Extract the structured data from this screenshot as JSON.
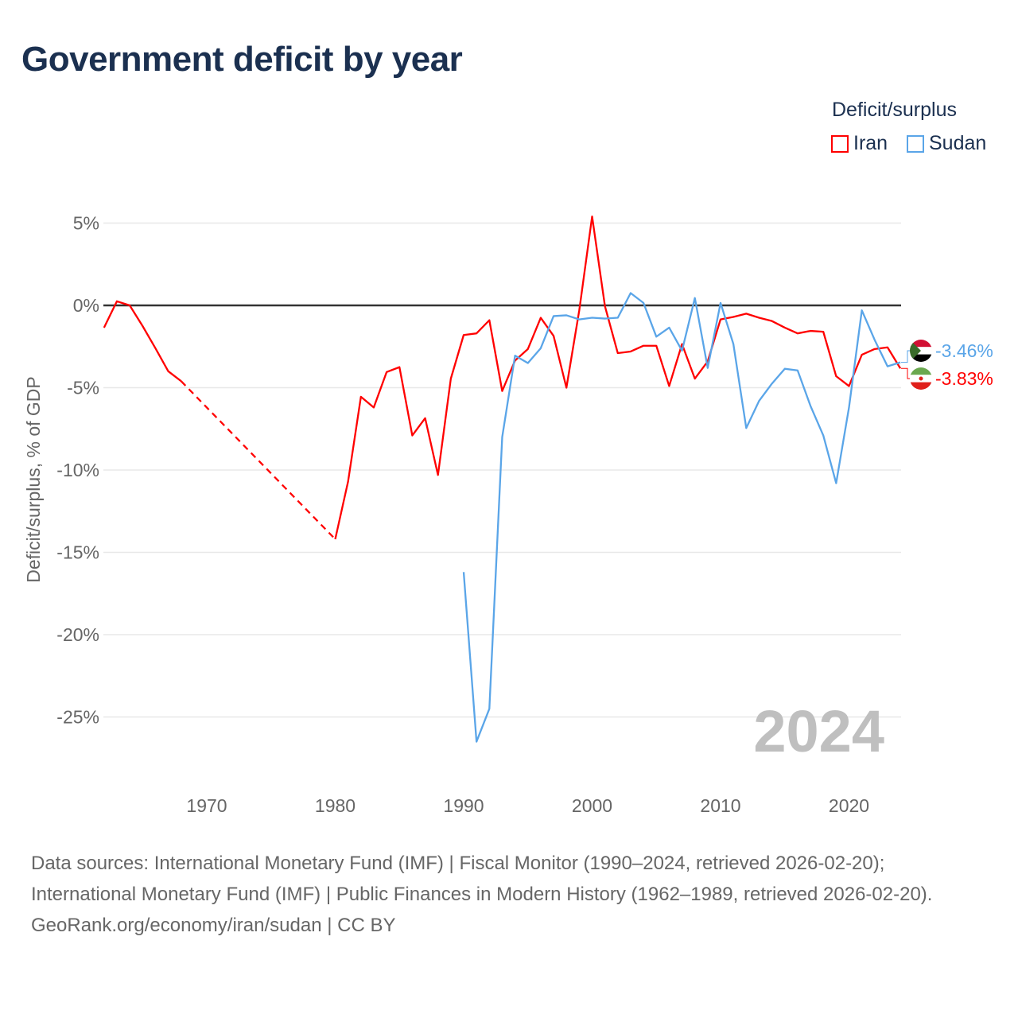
{
  "title": "Government deficit by year",
  "legend": {
    "title": "Deficit/surplus",
    "items": [
      {
        "name": "Iran",
        "color": "#ff0000"
      },
      {
        "name": "Sudan",
        "color": "#5aa5e8"
      }
    ]
  },
  "footer": {
    "sources": "Data sources: International Monetary Fund (IMF) | Fiscal Monitor (1990–2024, retrieved 2026-02-20); International Monetary Fund (IMF) | Public Finances in Modern History (1962–1989, retrieved 2026-02-20).",
    "attribution": "GeoRank.org/economy/iran/sudan | CC BY"
  },
  "chart_data": {
    "type": "line",
    "title": "Government deficit by year",
    "ylabel": "Deficit/surplus, % of GDP",
    "xlabel": "",
    "xlim": [
      1962,
      2024
    ],
    "ylim": [
      -28,
      6
    ],
    "yticks": [
      5,
      0,
      -5,
      -10,
      -15,
      -20,
      -25
    ],
    "ytick_labels": [
      "5%",
      "0%",
      "-5%",
      "-10%",
      "-15%",
      "-20%",
      "-25%"
    ],
    "xticks": [
      1970,
      1980,
      1990,
      2000,
      2010,
      2020
    ],
    "xtick_labels": [
      "1970",
      "1980",
      "1990",
      "2000",
      "2010",
      "2020"
    ],
    "grid": true,
    "legend_position": "top-right",
    "year_watermark": "2024",
    "series": [
      {
        "name": "Iran",
        "color": "#ff0000",
        "end_label": "-3.83%",
        "points": [
          [
            1962,
            -1.35
          ],
          [
            1963,
            0.25
          ],
          [
            1964,
            0
          ],
          [
            1965,
            -1.25
          ],
          [
            1966,
            -2.6
          ],
          [
            1967,
            -4.0
          ],
          [
            1968,
            -4.6
          ],
          [
            1980,
            -14.2
          ],
          [
            1981,
            -10.7
          ],
          [
            1982,
            -5.55
          ],
          [
            1983,
            -6.2
          ],
          [
            1984,
            -4.05
          ],
          [
            1985,
            -3.75
          ],
          [
            1986,
            -7.9
          ],
          [
            1987,
            -6.85
          ],
          [
            1988,
            -10.3
          ],
          [
            1989,
            -4.45
          ],
          [
            1990,
            -1.8
          ],
          [
            1991,
            -1.7
          ],
          [
            1992,
            -0.9
          ],
          [
            1993,
            -5.2
          ],
          [
            1994,
            -3.35
          ],
          [
            1995,
            -2.65
          ],
          [
            1996,
            -0.75
          ],
          [
            1997,
            -1.85
          ],
          [
            1998,
            -5.0
          ],
          [
            1999,
            -0.3
          ],
          [
            2000,
            5.4
          ],
          [
            2001,
            -0.05
          ],
          [
            2002,
            -2.9
          ],
          [
            2003,
            -2.8
          ],
          [
            2004,
            -2.45
          ],
          [
            2005,
            -2.45
          ],
          [
            2006,
            -4.9
          ],
          [
            2007,
            -2.35
          ],
          [
            2008,
            -4.45
          ],
          [
            2009,
            -3.4
          ],
          [
            2010,
            -0.85
          ],
          [
            2011,
            -0.7
          ],
          [
            2012,
            -0.5
          ],
          [
            2013,
            -0.75
          ],
          [
            2014,
            -0.95
          ],
          [
            2015,
            -1.35
          ],
          [
            2016,
            -1.7
          ],
          [
            2017,
            -1.55
          ],
          [
            2018,
            -1.6
          ],
          [
            2019,
            -4.3
          ],
          [
            2020,
            -4.9
          ],
          [
            2021,
            -3.0
          ],
          [
            2022,
            -2.65
          ],
          [
            2023,
            -2.55
          ],
          [
            2024,
            -3.83
          ]
        ],
        "dashed_gap": [
          1968,
          1980
        ]
      },
      {
        "name": "Sudan",
        "color": "#5aa5e8",
        "end_label": "-3.46%",
        "points": [
          [
            1990,
            -16.2
          ],
          [
            1991,
            -26.5
          ],
          [
            1992,
            -24.5
          ],
          [
            1993,
            -8.0
          ],
          [
            1994,
            -3.05
          ],
          [
            1995,
            -3.5
          ],
          [
            1996,
            -2.6
          ],
          [
            1997,
            -0.65
          ],
          [
            1998,
            -0.6
          ],
          [
            1999,
            -0.85
          ],
          [
            2000,
            -0.75
          ],
          [
            2001,
            -0.8
          ],
          [
            2002,
            -0.75
          ],
          [
            2003,
            0.75
          ],
          [
            2004,
            0.15
          ],
          [
            2005,
            -1.9
          ],
          [
            2006,
            -1.35
          ],
          [
            2007,
            -2.75
          ],
          [
            2008,
            0.45
          ],
          [
            2009,
            -3.8
          ],
          [
            2010,
            0.15
          ],
          [
            2011,
            -2.35
          ],
          [
            2012,
            -7.45
          ],
          [
            2013,
            -5.8
          ],
          [
            2014,
            -4.75
          ],
          [
            2015,
            -3.85
          ],
          [
            2016,
            -3.95
          ],
          [
            2017,
            -6.1
          ],
          [
            2018,
            -7.9
          ],
          [
            2019,
            -10.8
          ],
          [
            2020,
            -6.2
          ],
          [
            2021,
            -0.3
          ],
          [
            2022,
            -2.1
          ],
          [
            2023,
            -3.7
          ],
          [
            2024,
            -3.46
          ]
        ]
      }
    ]
  }
}
